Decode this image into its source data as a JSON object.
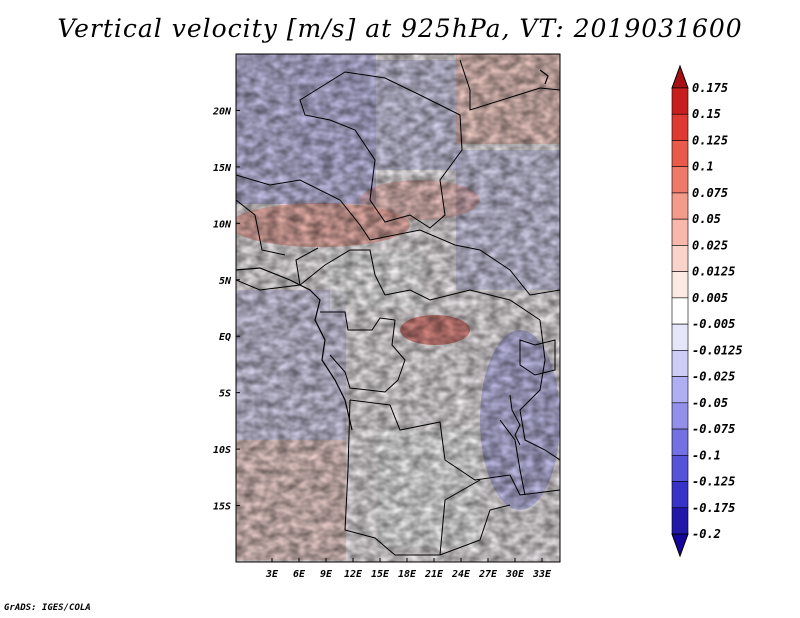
{
  "title": "Vertical velocity [m/s] at 925hPa, VT: 2019031600",
  "footer": "GrADS: IGES/COLA",
  "chart_data": {
    "type": "heatmap",
    "variable": "Vertical velocity",
    "units": "m/s",
    "level": "925hPa",
    "valid_time": "2019031600",
    "lon_range": [
      -1,
      35
    ],
    "lat_range": [
      -20,
      25
    ],
    "x_ticks": [
      "3E",
      "6E",
      "9E",
      "12E",
      "15E",
      "18E",
      "21E",
      "24E",
      "27E",
      "30E",
      "33E"
    ],
    "x_tick_values": [
      3,
      6,
      9,
      12,
      15,
      18,
      21,
      24,
      27,
      30,
      33
    ],
    "y_ticks": [
      "20N",
      "15N",
      "10N",
      "5N",
      "EQ",
      "5S",
      "10S",
      "15S"
    ],
    "y_tick_values": [
      20,
      15,
      10,
      5,
      0,
      -5,
      -10,
      -15
    ],
    "colorbar": {
      "levels": [
        "0.175",
        "0.15",
        "0.125",
        "0.1",
        "0.075",
        "0.05",
        "0.025",
        "0.0125",
        "0.005",
        "-0.005",
        "-0.0125",
        "-0.025",
        "-0.05",
        "-0.075",
        "-0.1",
        "-0.125",
        "-0.175",
        "-0.2"
      ],
      "colors": [
        "#a50f15",
        "#c81e1e",
        "#de3a32",
        "#ea5a4a",
        "#f07a6a",
        "#f49a8a",
        "#f7b7aa",
        "#fad3cb",
        "#fde9e4",
        "#ffffff",
        "#e6e6fb",
        "#cdccf7",
        "#b0aef2",
        "#9290eb",
        "#7472e3",
        "#5553d8",
        "#3833c8",
        "#2217a8",
        "#14069a"
      ]
    }
  }
}
